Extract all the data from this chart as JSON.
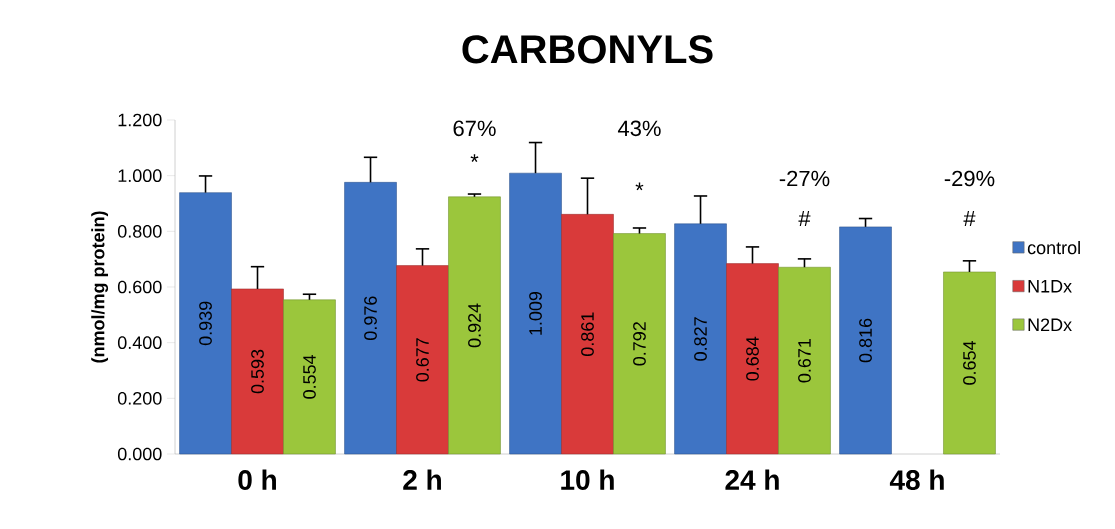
{
  "chart_data": {
    "type": "bar",
    "title": "CARBONYLS",
    "ylabel": "(nmol/mg protein)",
    "categories": [
      "0 h",
      "2 h",
      "10 h",
      "24 h",
      "48 h"
    ],
    "series": [
      {
        "name": "control",
        "color": "#3f74c4",
        "values": [
          0.939,
          0.976,
          1.009,
          0.827,
          0.816
        ],
        "errors": [
          0.06,
          0.09,
          0.11,
          0.1,
          0.03
        ]
      },
      {
        "name": "N1Dx",
        "color": "#d93a3a",
        "values": [
          0.593,
          0.677,
          0.861,
          0.684,
          null
        ],
        "errors": [
          0.08,
          0.06,
          0.13,
          0.06,
          null
        ]
      },
      {
        "name": "N2Dx",
        "color": "#9bc63c",
        "values": [
          0.554,
          0.924,
          0.792,
          0.671,
          0.654
        ],
        "errors": [
          0.02,
          0.01,
          0.02,
          0.03,
          0.04
        ]
      }
    ],
    "ylim": [
      0,
      1.2
    ],
    "yticks": [
      {
        "value": 0,
        "label": "0.000"
      },
      {
        "value": 0.2,
        "label": "0.200"
      },
      {
        "value": 0.4,
        "label": "0.400"
      },
      {
        "value": 0.6,
        "label": "0.600"
      },
      {
        "value": 0.8,
        "label": "0.800"
      },
      {
        "value": 1.0,
        "label": "1.000"
      },
      {
        "value": 1.2,
        "label": "1.200"
      }
    ],
    "data_labels": true,
    "legend": "right",
    "grid": false,
    "annotations": [
      "67%",
      "*",
      "43%",
      "*",
      "-27%",
      "#",
      "-29%",
      "#"
    ]
  }
}
